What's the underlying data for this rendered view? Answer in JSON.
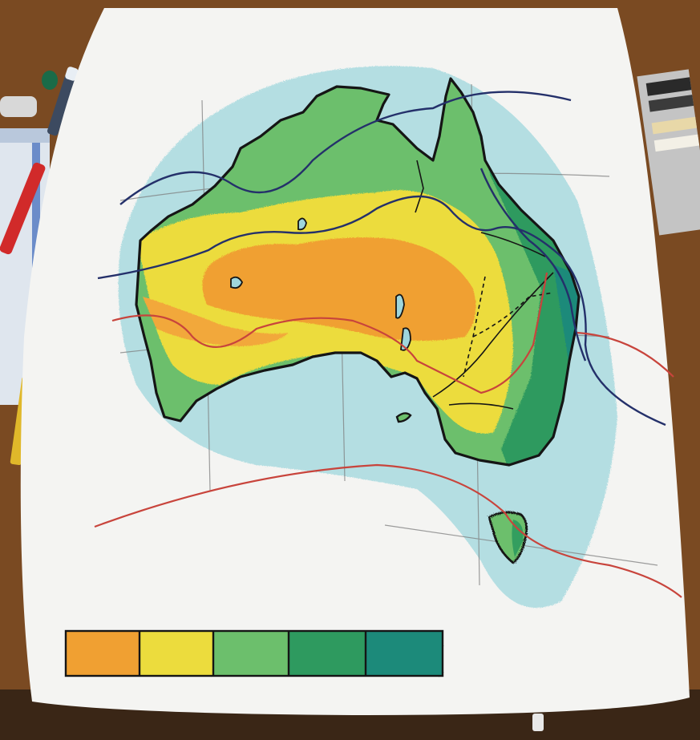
{
  "legend": {
    "swatches": [
      {
        "name": "orange",
        "color": "#f0a030"
      },
      {
        "name": "yellow",
        "color": "#ecdc3c"
      },
      {
        "name": "light-green",
        "color": "#6cbf6c"
      },
      {
        "name": "dark-green",
        "color": "#2e9a5e"
      },
      {
        "name": "teal",
        "color": "#1f8a7a"
      }
    ]
  },
  "colors": {
    "table": "#7a4a22",
    "paper": "#f4f4f2",
    "ocean": "#9fd6dc",
    "coastline": "#151515",
    "isoline_navy": "#24306a",
    "isoline_red": "#c8443c",
    "grid": "#7e7e7e"
  },
  "icons": [
    "marker-icon",
    "pastel-box-icon",
    "eraser-icon",
    "notebook-icon",
    "pencil-icon"
  ]
}
